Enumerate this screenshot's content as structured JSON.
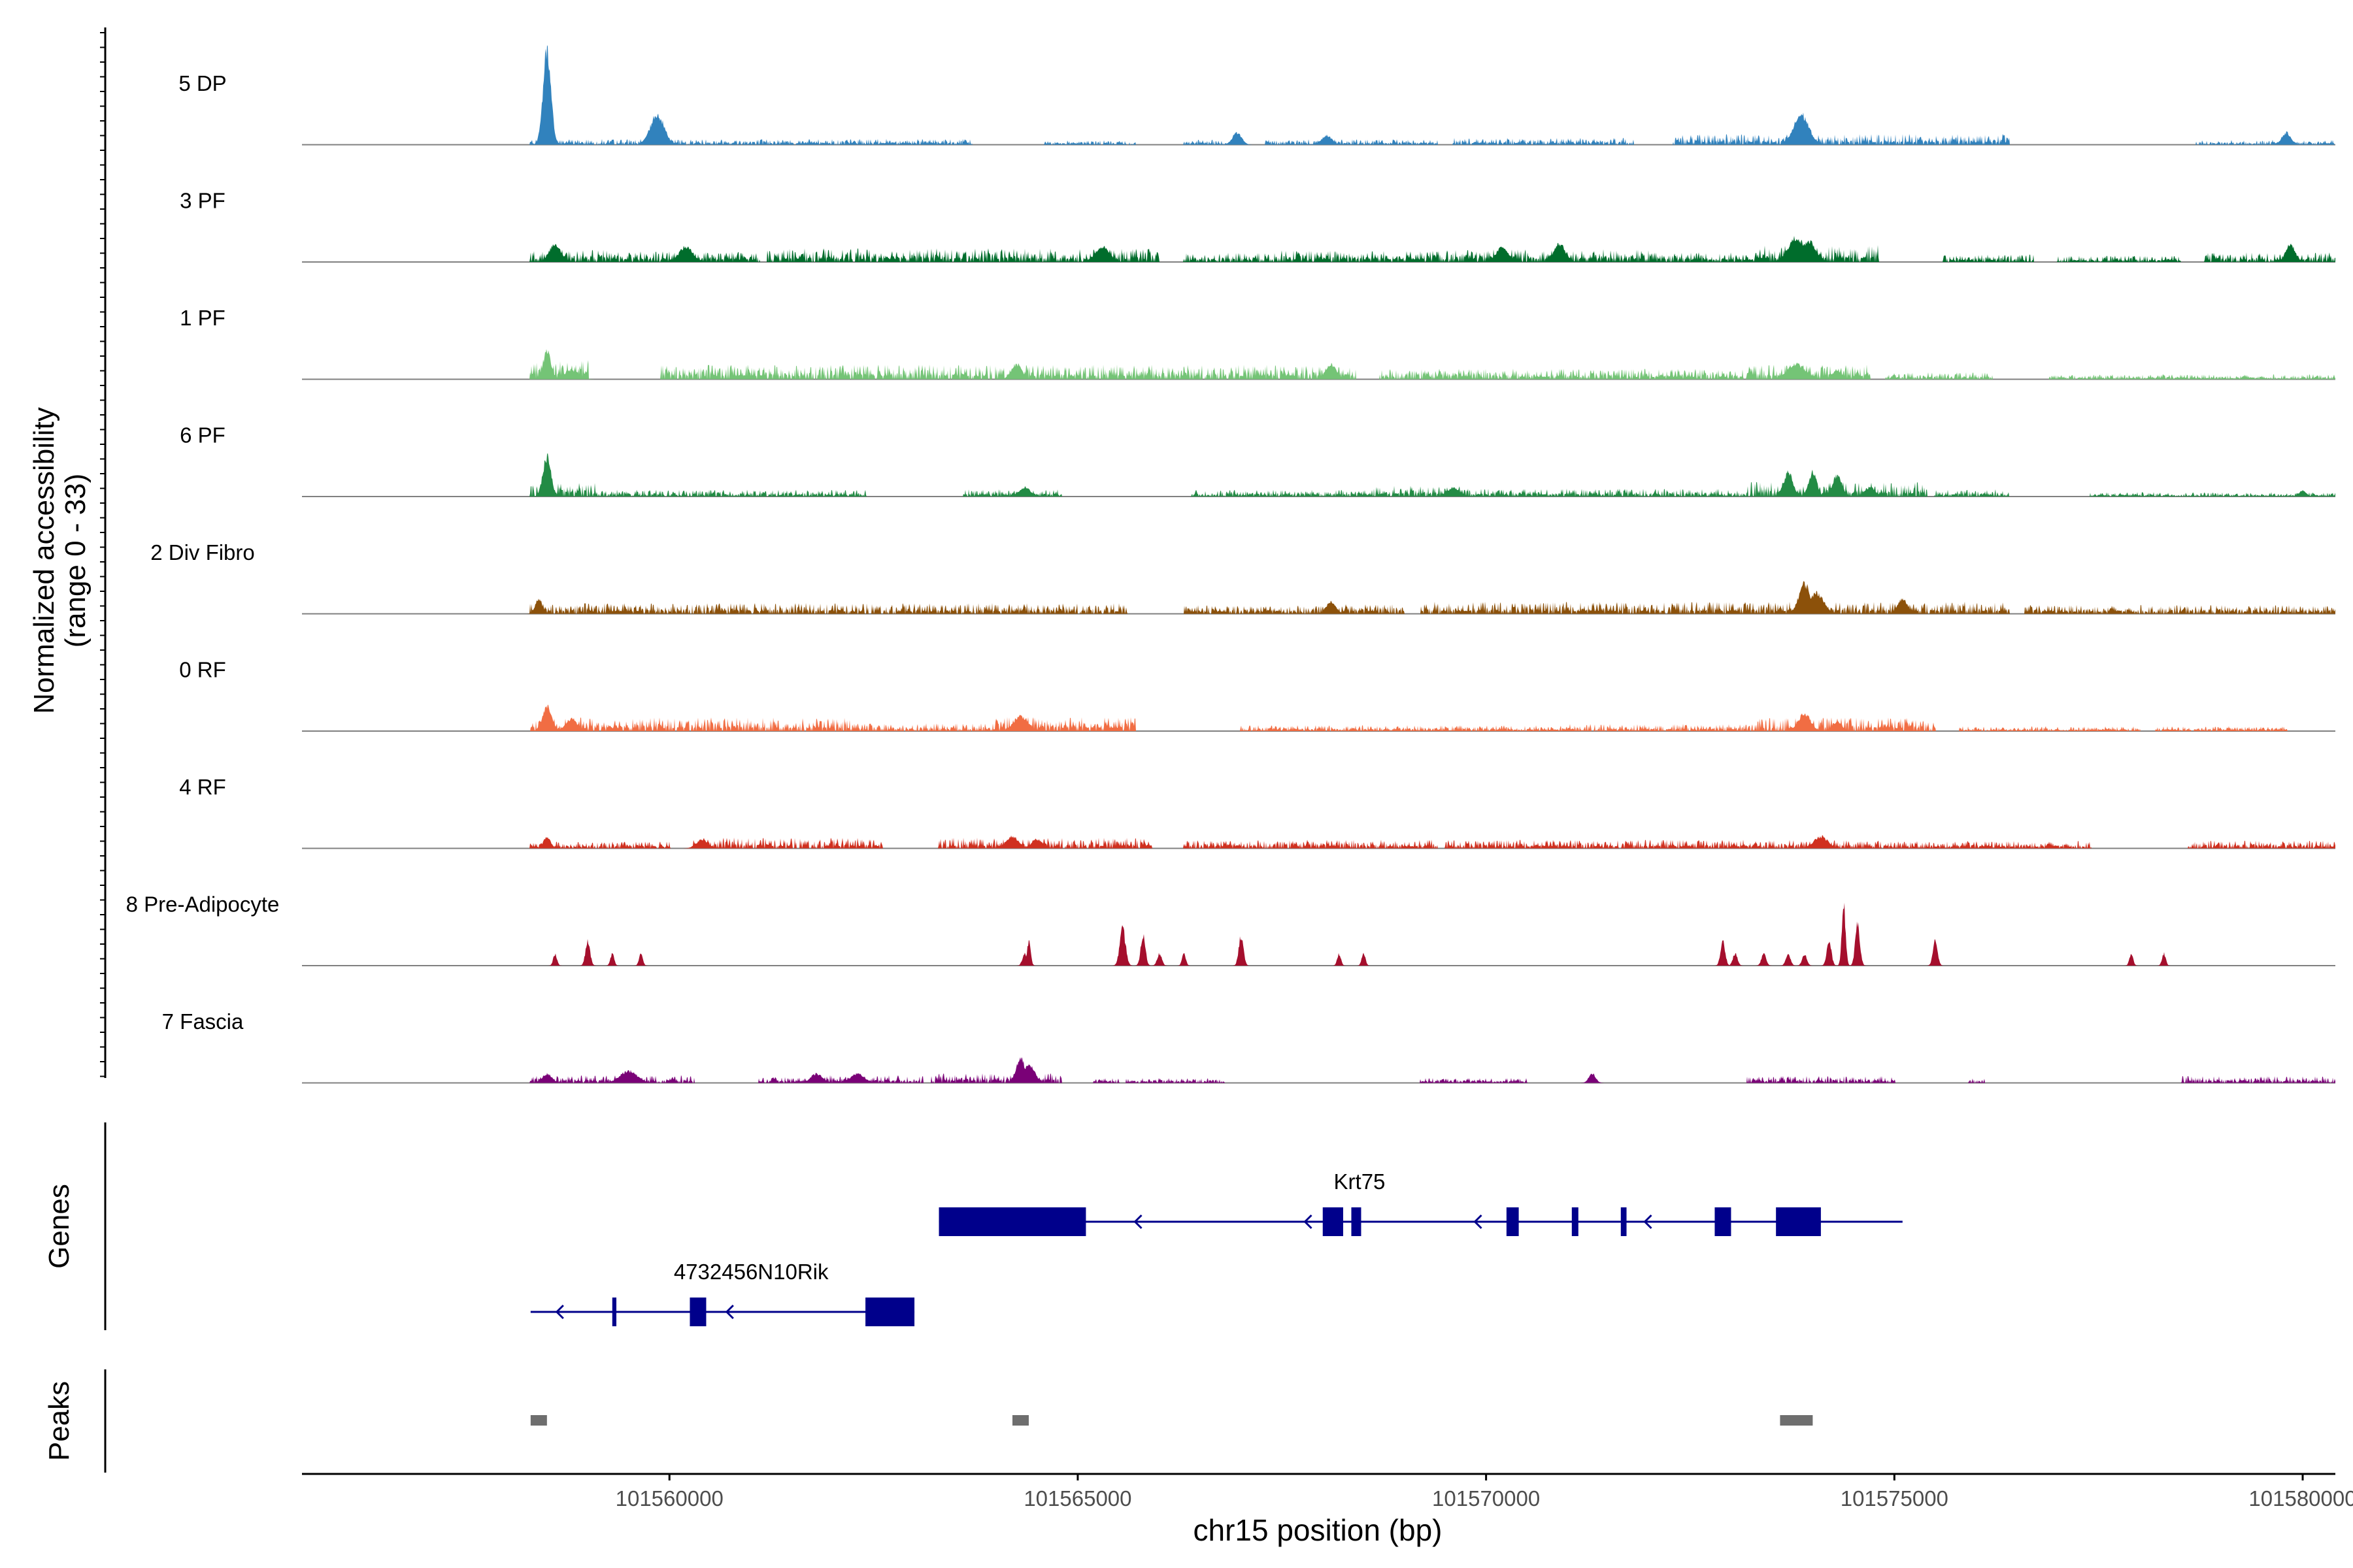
{
  "chart_data": {
    "type": "coverage_track",
    "xlabel": "chr15 position (bp)",
    "ylabel_line1": "Normalized accessibility",
    "ylabel_line2": "(range 0 - 33)",
    "y_range": [
      0,
      33
    ],
    "x_range": [
      101555500,
      101580400
    ],
    "x_ticks": [
      101560000,
      101565000,
      101570000,
      101575000,
      101580000
    ],
    "x_tick_labels": [
      "101560000",
      "101565000",
      "101570000",
      "101575000",
      "101580000"
    ],
    "genes_label": "Genes",
    "peaks_label": "Peaks",
    "series": [
      {
        "name": "5 DP",
        "color": "#3182BD",
        "peaks": [
          [
            101558500,
            30,
            70
          ],
          [
            101559850,
            10,
            120
          ],
          [
            101566950,
            4,
            80
          ],
          [
            101568050,
            3,
            90
          ],
          [
            101573860,
            10,
            130
          ],
          [
            101579800,
            4,
            80
          ]
        ],
        "segments": [
          [
            101558300,
            101563700,
            1.2
          ],
          [
            101564600,
            101565700,
            0.9
          ],
          [
            101566300,
            101567000,
            1.0
          ],
          [
            101567300,
            101569400,
            1.1
          ],
          [
            101569600,
            101571800,
            1.4
          ],
          [
            101572300,
            101576400,
            2.2
          ],
          [
            101578700,
            101580800,
            1.0
          ]
        ]
      },
      {
        "name": "3 PF",
        "color": "#006D2C",
        "peaks": [
          [
            101558600,
            6,
            100
          ],
          [
            101560200,
            5,
            120
          ],
          [
            101565300,
            5,
            120
          ],
          [
            101570200,
            5,
            100
          ],
          [
            101570900,
            6,
            100
          ],
          [
            101573800,
            8,
            140
          ],
          [
            101573950,
            7,
            120
          ],
          [
            101579850,
            6,
            80
          ]
        ],
        "segments": [
          [
            101558300,
            101559400,
            2.5
          ],
          [
            101559400,
            101561100,
            2.2
          ],
          [
            101561200,
            101566000,
            2.8
          ],
          [
            101566300,
            101567500,
            1.9
          ],
          [
            101567500,
            101569700,
            2.4
          ],
          [
            101569700,
            101572000,
            2.6
          ],
          [
            101572000,
            101573300,
            2.0
          ],
          [
            101573300,
            101574800,
            3.5
          ],
          [
            101575600,
            101576700,
            1.6
          ],
          [
            101577000,
            101578500,
            1.3
          ],
          [
            101578800,
            101580600,
            2.0
          ]
        ]
      },
      {
        "name": "1 PF",
        "color": "#74C476",
        "peaks": [
          [
            101558500,
            9,
            70
          ],
          [
            101558800,
            3,
            120
          ],
          [
            101564250,
            5,
            90
          ],
          [
            101568100,
            5,
            90
          ],
          [
            101573800,
            5,
            150
          ],
          [
            101574300,
            3,
            80
          ]
        ],
        "segments": [
          [
            101558300,
            101559000,
            4.0
          ],
          [
            101559900,
            101568400,
            3.0
          ],
          [
            101568700,
            101573200,
            2.2
          ],
          [
            101573200,
            101574700,
            3.0
          ],
          [
            101574900,
            101576200,
            1.5
          ],
          [
            101576900,
            101580700,
            1.0
          ]
        ]
      },
      {
        "name": "6 PF",
        "color": "#238B45",
        "peaks": [
          [
            101558500,
            13,
            70
          ],
          [
            101564350,
            3,
            100
          ],
          [
            101569600,
            3,
            100
          ],
          [
            101573700,
            8,
            80
          ],
          [
            101574000,
            8,
            70
          ],
          [
            101574300,
            7,
            80
          ],
          [
            101574700,
            3,
            90
          ],
          [
            101580000,
            2,
            60
          ]
        ],
        "segments": [
          [
            101558300,
            101559100,
            2.8
          ],
          [
            101559100,
            101562400,
            1.4
          ],
          [
            101562400,
            101563600,
            0.0
          ],
          [
            101563600,
            101564800,
            1.5
          ],
          [
            101566400,
            101568600,
            1.4
          ],
          [
            101568600,
            101569800,
            2.2
          ],
          [
            101569800,
            101573200,
            1.6
          ],
          [
            101573200,
            101575400,
            3.0
          ],
          [
            101575500,
            101576400,
            1.5
          ],
          [
            101577400,
            101580900,
            0.9
          ]
        ]
      },
      {
        "name": "2 Div Fibro",
        "color": "#8C510A",
        "peaks": [
          [
            101558400,
            5,
            60
          ],
          [
            101568100,
            4,
            80
          ],
          [
            101573900,
            10,
            100
          ],
          [
            101574050,
            7,
            120
          ],
          [
            101575100,
            5,
            80
          ],
          [
            101580600,
            4,
            100
          ]
        ],
        "segments": [
          [
            101558300,
            101563400,
            2.2
          ],
          [
            101563400,
            101565600,
            2.2
          ],
          [
            101566300,
            101567800,
            1.8
          ],
          [
            101567800,
            101569000,
            2.0
          ],
          [
            101569200,
            101576400,
            2.5
          ],
          [
            101576600,
            101580900,
            1.8
          ]
        ]
      },
      {
        "name": "0 RF",
        "color": "#F16D43",
        "peaks": [
          [
            101558500,
            8,
            80
          ],
          [
            101558800,
            4,
            100
          ],
          [
            101564300,
            5,
            120
          ],
          [
            101573900,
            6,
            100
          ],
          [
            101574300,
            3,
            80
          ]
        ],
        "segments": [
          [
            101558300,
            101562200,
            2.8
          ],
          [
            101562200,
            101564000,
            1.6
          ],
          [
            101564000,
            101565700,
            3.0
          ],
          [
            101567000,
            101571000,
            1.2
          ],
          [
            101571000,
            101573300,
            1.5
          ],
          [
            101573300,
            101575500,
            2.8
          ],
          [
            101575800,
            101578000,
            1.0
          ],
          [
            101578200,
            101579800,
            1.0
          ]
        ]
      },
      {
        "name": "4 RF",
        "color": "#D0301F",
        "peaks": [
          [
            101558500,
            4,
            60
          ],
          [
            101560400,
            3,
            100
          ],
          [
            101564200,
            4,
            100
          ],
          [
            101564500,
            3,
            90
          ],
          [
            101574100,
            4,
            120
          ],
          [
            101580900,
            3,
            60
          ]
        ],
        "segments": [
          [
            101558300,
            101560000,
            1.4
          ],
          [
            101560300,
            101562600,
            2.2
          ],
          [
            101563300,
            101565900,
            2.2
          ],
          [
            101566300,
            101569400,
            1.8
          ],
          [
            101569500,
            101575000,
            1.8
          ],
          [
            101575000,
            101577400,
            1.5
          ],
          [
            101578600,
            101580900,
            1.6
          ]
        ]
      },
      {
        "name": "8 Pre-Adipocyte",
        "color": "#A50F2D",
        "peaks": [
          [
            101558600,
            4,
            30
          ],
          [
            101559000,
            8,
            40
          ],
          [
            101559300,
            4,
            30
          ],
          [
            101559650,
            4,
            30
          ],
          [
            101564350,
            4,
            40
          ],
          [
            101564400,
            8,
            30
          ],
          [
            101565550,
            12,
            50
          ],
          [
            101565800,
            10,
            40
          ],
          [
            101566000,
            4,
            40
          ],
          [
            101566300,
            4,
            30
          ],
          [
            101567000,
            10,
            40
          ],
          [
            101568200,
            4,
            30
          ],
          [
            101568500,
            4,
            30
          ],
          [
            101572900,
            8,
            40
          ],
          [
            101573050,
            4,
            40
          ],
          [
            101573400,
            4,
            40
          ],
          [
            101573700,
            4,
            40
          ],
          [
            101573900,
            4,
            40
          ],
          [
            101574200,
            8,
            40
          ],
          [
            101574380,
            20,
            30
          ],
          [
            101574550,
            14,
            40
          ],
          [
            101575500,
            8,
            40
          ],
          [
            101577900,
            4,
            30
          ],
          [
            101578300,
            4,
            30
          ]
        ],
        "segments": []
      },
      {
        "name": "7 Fascia",
        "color": "#7A0177",
        "peaks": [
          [
            101558500,
            3,
            80
          ],
          [
            101559500,
            4,
            150
          ],
          [
            101561800,
            3,
            100
          ],
          [
            101562300,
            3,
            120
          ],
          [
            101564300,
            8,
            80
          ],
          [
            101564400,
            6,
            100
          ],
          [
            101571300,
            3,
            60
          ]
        ],
        "segments": [
          [
            101558300,
            101560300,
            1.6
          ],
          [
            101561100,
            101561700,
            1.2
          ],
          [
            101561900,
            101563100,
            1.6
          ],
          [
            101563200,
            101564800,
            2.0
          ],
          [
            101565200,
            101565500,
            1.0
          ],
          [
            101565600,
            101566800,
            1.0
          ],
          [
            101569200,
            101570500,
            1.0
          ],
          [
            101573200,
            101575000,
            1.4
          ],
          [
            101575900,
            101576100,
            1.2
          ],
          [
            101578500,
            101580900,
            1.4
          ]
        ]
      }
    ],
    "genes": [
      {
        "name": "Krt75",
        "strand": "-",
        "start": 101563300,
        "end": 101575100,
        "exons": [
          [
            101563300,
            101565100
          ],
          [
            101568000,
            101568250
          ],
          [
            101568350,
            101568470
          ],
          [
            101570250,
            101570400
          ],
          [
            101571050,
            101571130
          ],
          [
            101571650,
            101571720
          ],
          [
            101572800,
            101573000
          ],
          [
            101573550,
            101574100
          ]
        ]
      },
      {
        "name": "4732456N10Rik",
        "strand": "-",
        "start": 101558300,
        "end": 101563000,
        "exons": [
          [
            101559300,
            101559350
          ],
          [
            101560250,
            101560450
          ],
          [
            101562400,
            101563000
          ]
        ]
      }
    ],
    "peaks_track": [
      [
        101558300,
        101558500
      ],
      [
        101564200,
        101564400
      ],
      [
        101573600,
        101574000
      ]
    ]
  }
}
